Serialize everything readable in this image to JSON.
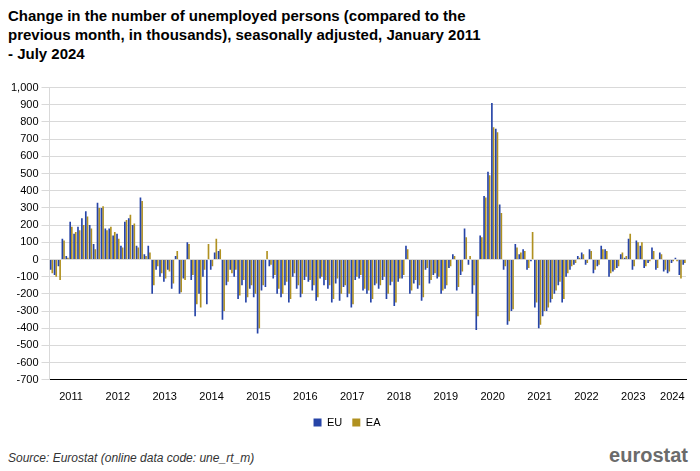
{
  "chart_data": {
    "type": "bar",
    "title": "Change in the number of unemployed persons (compared to the previous month, in thousands), seasonally adjusted, January 2011 - July 2024",
    "source": "Source: Eurostat (online data code: une_rt_m)",
    "logo": "eurostat",
    "categories": [
      null,
      null,
      null,
      null,
      null,
      "2011",
      null,
      null,
      null,
      null,
      null,
      null,
      null,
      null,
      null,
      null,
      null,
      "2012",
      null,
      null,
      null,
      null,
      null,
      null,
      null,
      null,
      null,
      null,
      null,
      "2013",
      null,
      null,
      null,
      null,
      null,
      null,
      null,
      null,
      null,
      null,
      null,
      "2014",
      null,
      null,
      null,
      null,
      null,
      null,
      null,
      null,
      null,
      null,
      null,
      "2015",
      null,
      null,
      null,
      null,
      null,
      null,
      null,
      null,
      null,
      null,
      null,
      "2016",
      null,
      null,
      null,
      null,
      null,
      null,
      null,
      null,
      null,
      null,
      null,
      "2017",
      null,
      null,
      null,
      null,
      null,
      null,
      null,
      null,
      null,
      null,
      null,
      "2018",
      null,
      null,
      null,
      null,
      null,
      null,
      null,
      null,
      null,
      null,
      null,
      "2019",
      null,
      null,
      null,
      null,
      null,
      null,
      null,
      null,
      null,
      null,
      null,
      "2020",
      null,
      null,
      null,
      null,
      null,
      null,
      null,
      null,
      null,
      null,
      null,
      "2021",
      null,
      null,
      null,
      null,
      null,
      null,
      null,
      null,
      null,
      null,
      null,
      "2022",
      null,
      null,
      null,
      null,
      null,
      null,
      null,
      null,
      null,
      null,
      null,
      "2023",
      null,
      null,
      null,
      null,
      null,
      null,
      null,
      null,
      null,
      "2024",
      null,
      null,
      null
    ],
    "series": [
      {
        "name": "EU",
        "color": "#2644a7",
        "values": [
          -60,
          -90,
          -40,
          120,
          20,
          220,
          150,
          190,
          240,
          280,
          200,
          90,
          330,
          300,
          180,
          180,
          140,
          150,
          80,
          220,
          240,
          200,
          80,
          360,
          30,
          80,
          -200,
          -60,
          -100,
          -130,
          -60,
          -170,
          20,
          -200,
          -110,
          100,
          -120,
          -330,
          -200,
          -100,
          -260,
          -60,
          40,
          50,
          -350,
          -150,
          -60,
          -100,
          -230,
          -150,
          -250,
          -170,
          -220,
          -430,
          -180,
          -160,
          -40,
          -110,
          -200,
          -220,
          -150,
          -250,
          -100,
          -170,
          -220,
          -120,
          -130,
          -180,
          -240,
          -110,
          -150,
          -170,
          -250,
          -140,
          -240,
          -160,
          -220,
          -280,
          -120,
          -110,
          -180,
          -200,
          -250,
          -150,
          -170,
          -120,
          -230,
          -150,
          -270,
          -130,
          -110,
          80,
          -200,
          -140,
          -170,
          -240,
          -60,
          -140,
          -90,
          -110,
          -200,
          -170,
          -50,
          30,
          -180,
          -90,
          180,
          -30,
          -200,
          -410,
          140,
          370,
          510,
          910,
          760,
          320,
          -60,
          -380,
          -300,
          90,
          30,
          60,
          -60,
          -10,
          -280,
          -400,
          -330,
          -300,
          -250,
          -200,
          -150,
          -250,
          -100,
          -60,
          -30,
          20,
          40,
          -30,
          60,
          -80,
          -40,
          80,
          60,
          -100,
          -70,
          -50,
          30,
          10,
          120,
          -60,
          110,
          80,
          -50,
          -20,
          70,
          -60,
          40,
          -70,
          -80,
          -20,
          10,
          -90,
          -30
        ]
      },
      {
        "name": "EA",
        "color": "#b09120",
        "values": [
          -80,
          -100,
          -120,
          110,
          10,
          190,
          160,
          170,
          200,
          250,
          180,
          60,
          300,
          310,
          170,
          190,
          160,
          120,
          70,
          230,
          260,
          210,
          70,
          340,
          20,
          40,
          -150,
          -40,
          -80,
          -110,
          -70,
          -140,
          50,
          -190,
          -120,
          90,
          -90,
          -260,
          -280,
          -60,
          90,
          -40,
          120,
          60,
          -300,
          -130,
          -80,
          -60,
          -210,
          -120,
          -220,
          -150,
          -200,
          -400,
          -150,
          50,
          -30,
          -90,
          -170,
          -200,
          -130,
          -230,
          -80,
          -150,
          -200,
          -100,
          -120,
          -150,
          -220,
          -100,
          -120,
          -150,
          -230,
          -110,
          -200,
          -150,
          -200,
          -260,
          -100,
          -90,
          -170,
          -180,
          -230,
          -140,
          -150,
          -100,
          -200,
          -130,
          -250,
          -110,
          -90,
          60,
          -180,
          -120,
          -150,
          -220,
          -50,
          -120,
          -80,
          -100,
          -180,
          -150,
          -40,
          20,
          -160,
          -70,
          130,
          20,
          -150,
          -330,
          130,
          360,
          490,
          770,
          740,
          270,
          -40,
          -360,
          -290,
          70,
          40,
          50,
          -50,
          160,
          -250,
          -380,
          -300,
          -280,
          -230,
          -180,
          -130,
          -230,
          -80,
          -40,
          -20,
          10,
          30,
          -20,
          50,
          -60,
          -30,
          60,
          50,
          -80,
          -60,
          -40,
          40,
          20,
          150,
          -40,
          100,
          100,
          -40,
          -10,
          50,
          -50,
          30,
          -60,
          -70,
          -10,
          -10,
          -110,
          -20
        ]
      }
    ],
    "ylim": [
      -700,
      1000
    ],
    "yticks": [
      -700,
      -600,
      -500,
      -400,
      -300,
      -200,
      -100,
      0,
      100,
      200,
      300,
      400,
      500,
      600,
      700,
      800,
      900,
      1000
    ],
    "grid": true,
    "legend": "bottom"
  }
}
